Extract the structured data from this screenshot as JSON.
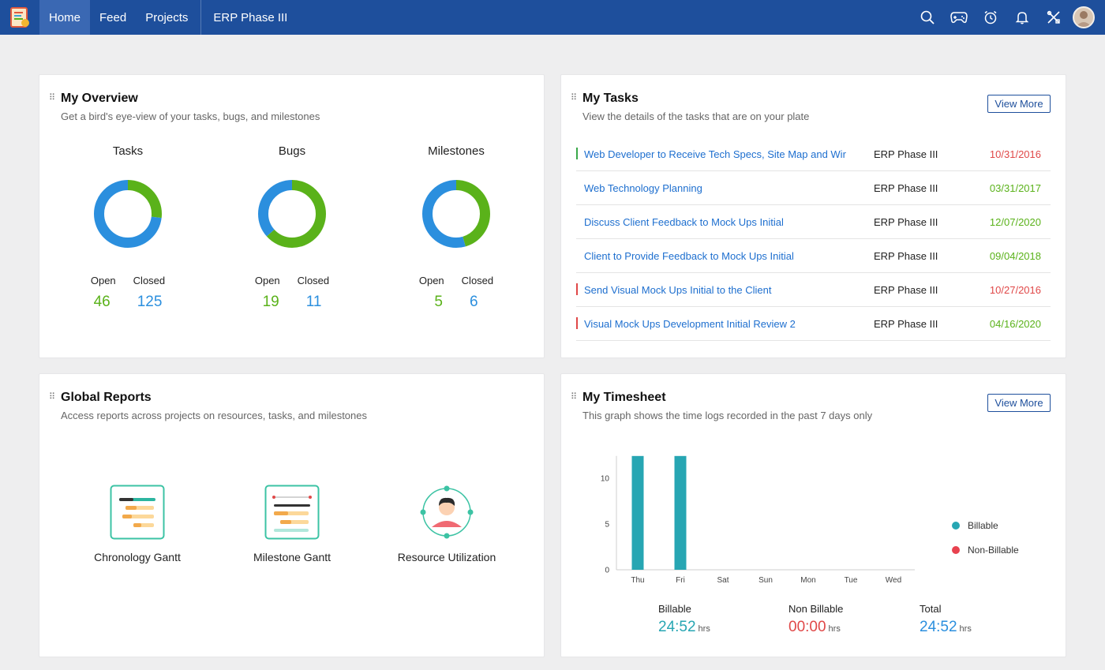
{
  "nav": {
    "tabs": [
      {
        "label": "Home",
        "active": true
      },
      {
        "label": "Feed",
        "active": false
      },
      {
        "label": "Projects",
        "active": false
      }
    ],
    "project": "ERP Phase III",
    "icons": [
      "search-icon",
      "gamepad-icon",
      "alarm-icon",
      "bell-icon",
      "tools-icon"
    ]
  },
  "overview": {
    "title": "My Overview",
    "subtitle": "Get a bird's eye-view of your tasks, bugs, and milestones",
    "open_label": "Open",
    "closed_label": "Closed",
    "items": [
      {
        "label": "Tasks",
        "open": "46",
        "closed": "125"
      },
      {
        "label": "Bugs",
        "open": "19",
        "closed": "11"
      },
      {
        "label": "Milestones",
        "open": "5",
        "closed": "6"
      }
    ]
  },
  "tasks": {
    "title": "My Tasks",
    "subtitle": "View the details of the tasks that are on your plate",
    "view_more": "View More",
    "rows": [
      {
        "name": "Web Developer to Receive Tech Specs, Site Map and Wir",
        "project": "ERP Phase III",
        "date": "10/31/2016",
        "status": "overdue",
        "flag": "green"
      },
      {
        "name": "Web Technology Planning",
        "project": "ERP Phase III",
        "date": "03/31/2017",
        "status": "ok",
        "flag": "none"
      },
      {
        "name": "Discuss Client Feedback to Mock Ups Initial",
        "project": "ERP Phase III",
        "date": "12/07/2020",
        "status": "ok",
        "flag": "none"
      },
      {
        "name": "Client to Provide Feedback to Mock Ups Initial",
        "project": "ERP Phase III",
        "date": "09/04/2018",
        "status": "ok",
        "flag": "none"
      },
      {
        "name": "Send Visual Mock Ups Initial to the Client",
        "project": "ERP Phase III",
        "date": "10/27/2016",
        "status": "overdue",
        "flag": "red"
      },
      {
        "name": "Visual Mock Ups Development Initial Review 2",
        "project": "ERP Phase III",
        "date": "04/16/2020",
        "status": "ok",
        "flag": "red"
      }
    ]
  },
  "reports": {
    "title": "Global Reports",
    "subtitle": "Access reports across projects on resources, tasks, and milestones",
    "items": [
      {
        "label": "Chronology Gantt"
      },
      {
        "label": "Milestone Gantt"
      },
      {
        "label": "Resource Utilization"
      }
    ]
  },
  "timesheet": {
    "title": "My Timesheet",
    "subtitle": "This graph shows the time logs recorded in the past 7 days only",
    "view_more": "View More",
    "legend": [
      "Billable",
      "Non-Billable"
    ],
    "summary": [
      {
        "label": "Billable",
        "value": "24:52",
        "unit": "hrs"
      },
      {
        "label": "Non Billable",
        "value": "00:00",
        "unit": "hrs"
      },
      {
        "label": "Total",
        "value": "24:52",
        "unit": "hrs"
      }
    ]
  },
  "colors": {
    "nav": "#1e4f9c",
    "open_green": "#5ab21a",
    "closed_blue": "#2b8fde",
    "billable": "#27a6b3",
    "non_billable": "#e8424f"
  },
  "chart_data": [
    {
      "type": "pie",
      "title": "Tasks",
      "labels": [
        "Open",
        "Closed"
      ],
      "values": [
        46,
        125
      ]
    },
    {
      "type": "pie",
      "title": "Bugs",
      "labels": [
        "Open",
        "Closed"
      ],
      "values": [
        19,
        11
      ]
    },
    {
      "type": "pie",
      "title": "Milestones",
      "labels": [
        "Open",
        "Closed"
      ],
      "values": [
        5,
        6
      ]
    },
    {
      "type": "bar",
      "categories": [
        "Thu",
        "Fri",
        "Sat",
        "Sun",
        "Mon",
        "Tue",
        "Wed"
      ],
      "series": [
        {
          "name": "Billable",
          "values": [
            12.43,
            12.43,
            0,
            0,
            0,
            0,
            0
          ]
        },
        {
          "name": "Non-Billable",
          "values": [
            0,
            0,
            0,
            0,
            0,
            0,
            0
          ]
        }
      ],
      "yticks": [
        0,
        5,
        10
      ],
      "ylim": [
        0,
        12.43
      ],
      "legend": "right"
    }
  ]
}
